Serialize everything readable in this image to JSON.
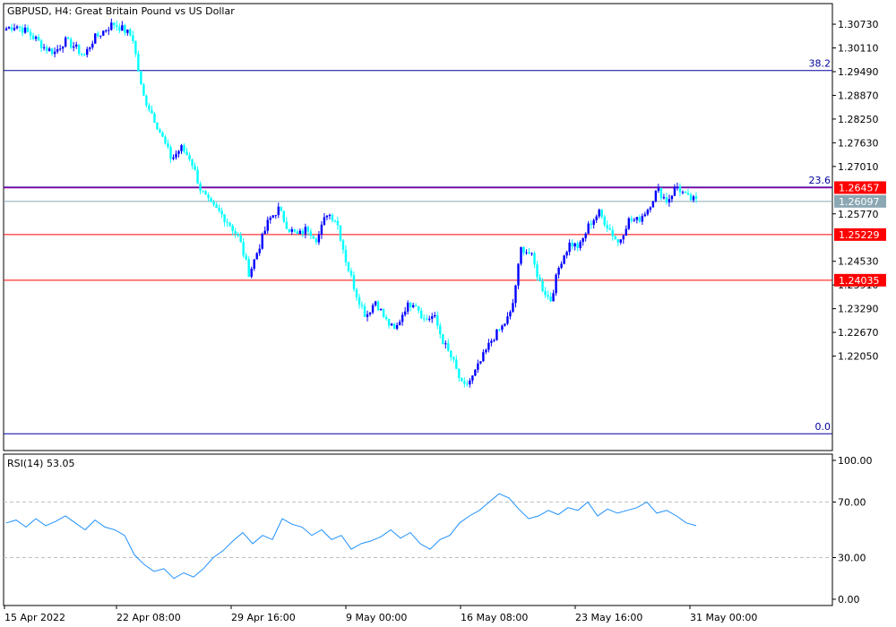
{
  "header": {
    "symbol_title": "GBPUSD, H4:  Great Britain Pound vs US Dollar"
  },
  "colors": {
    "bull": "#0000ff",
    "bear": "#00ffff",
    "fib_line": "#0000a0",
    "current_level": "#8000a0",
    "bid_line": "#8aa7b3",
    "support_line": "#ff0000",
    "rsi_line": "#1e90ff",
    "axis": "#000000",
    "grid_dash": "#c0c0c0"
  },
  "chart_data": [
    {
      "type": "candlestick",
      "title": "GBPUSD, H4:  Great Britain Pound vs US Dollar",
      "symbol": "GBPUSD",
      "timeframe": "H4",
      "ylim": [
        1.1958,
        1.3127
      ],
      "y_ticks": [
        "1.30730",
        "1.30110",
        "1.29490",
        "1.28870",
        "1.28250",
        "1.27630",
        "1.27010",
        "1.25770",
        "1.24530",
        "1.23910",
        "1.23290",
        "1.22670",
        "1.22050"
      ],
      "x_ticks": [
        "15 Apr 2022",
        "22 Apr 08:00",
        "29 Apr 16:00",
        "9 May 00:00",
        "16 May 08:00",
        "23 May 16:00",
        "31 May 00:00"
      ],
      "fib_levels": [
        {
          "label": "38.2",
          "value": 1.2952
        },
        {
          "label": "23.6",
          "value": 1.2647
        },
        {
          "label": "0.0",
          "value": 1.2002
        }
      ],
      "price_levels": [
        {
          "label": "1.26457",
          "value": 1.26457,
          "kind": "current"
        },
        {
          "label": "1.26097",
          "value": 1.26097,
          "kind": "bid"
        },
        {
          "label": "1.25229",
          "value": 1.25229,
          "kind": "support"
        },
        {
          "label": "1.24035",
          "value": 1.24035,
          "kind": "support"
        }
      ],
      "price_path": [
        1.3062,
        1.307,
        1.3055,
        1.3035,
        1.301,
        1.3,
        1.303,
        1.3015,
        1.299,
        1.3035,
        1.3055,
        1.3075,
        1.306,
        1.304,
        1.289,
        1.284,
        1.278,
        1.272,
        1.275,
        1.272,
        1.264,
        1.26,
        1.258,
        1.255,
        1.251,
        1.242,
        1.249,
        1.256,
        1.259,
        1.254,
        1.252,
        1.254,
        1.251,
        1.258,
        1.256,
        1.245,
        1.237,
        1.231,
        1.235,
        1.23,
        1.227,
        1.233,
        1.235,
        1.23,
        1.231,
        1.224,
        1.219,
        1.212,
        1.215,
        1.22,
        1.225,
        1.228,
        1.232,
        1.249,
        1.247,
        1.239,
        1.235,
        1.245,
        1.25,
        1.249,
        1.255,
        1.258,
        1.254,
        1.25,
        1.256,
        1.256,
        1.259,
        1.264,
        1.261,
        1.265,
        1.262,
        1.261
      ],
      "wick_pct": 0.0012
    },
    {
      "type": "line",
      "title": "RSI(14) 53.05",
      "series": [
        {
          "name": "RSI(14)",
          "values": [
            55,
            57,
            52,
            58,
            53,
            56,
            60,
            55,
            50,
            57,
            52,
            50,
            46,
            32,
            25,
            20,
            22,
            15,
            19,
            16,
            22,
            30,
            35,
            42,
            48,
            40,
            46,
            43,
            58,
            54,
            52,
            46,
            50,
            43,
            46,
            36,
            40,
            42,
            45,
            50,
            44,
            48,
            40,
            36,
            43,
            46,
            55,
            60,
            64,
            70,
            76,
            73,
            65,
            58,
            60,
            64,
            61,
            66,
            64,
            70,
            60,
            65,
            62,
            64,
            66,
            70,
            62,
            64,
            60,
            55,
            53
          ]
        }
      ],
      "ylim": [
        0,
        100
      ],
      "y_ticks": [
        "100.00",
        "70.00",
        "30.00",
        "0.00"
      ],
      "levels": [
        70,
        30
      ],
      "grid": false
    }
  ]
}
